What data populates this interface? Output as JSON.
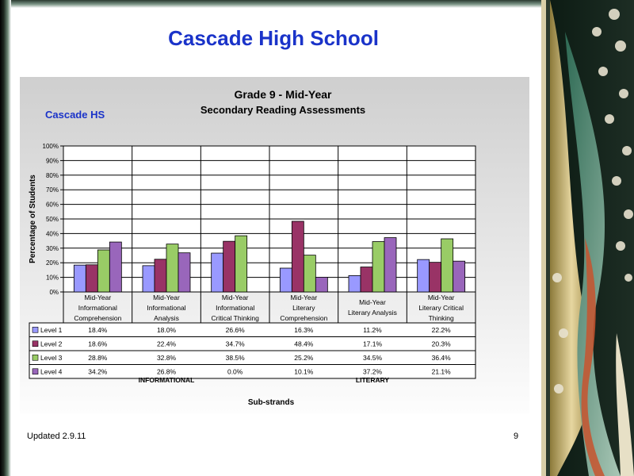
{
  "slide": {
    "title": "Cascade High School",
    "footer_left": "Updated  2.9.11",
    "page_number": "9"
  },
  "chart_data": {
    "type": "bar",
    "title": "Grade 9 - Mid-Year",
    "subtitle": "Secondary Reading Assessments",
    "school_label": "Cascade HS",
    "ylabel": "Percentage of Students",
    "xlabel": "Sub-strands",
    "ylim": [
      0,
      100
    ],
    "yticks": [
      "0%",
      "10%",
      "20%",
      "30%",
      "40%",
      "50%",
      "60%",
      "70%",
      "80%",
      "90%",
      "100%"
    ],
    "grid": true,
    "legend": "data-table",
    "categories": [
      [
        "Mid-Year",
        "Informational",
        "Comprehension"
      ],
      [
        "Mid-Year",
        "Informational",
        "Analysis"
      ],
      [
        "Mid-Year",
        "Informational",
        "Critical Thinking"
      ],
      [
        "Mid-Year",
        "Literary",
        "Comprehension"
      ],
      [
        "Mid-Year",
        "Literary Analysis"
      ],
      [
        "Mid-Year",
        "Literary Critical",
        "Thinking"
      ]
    ],
    "groups": [
      {
        "label": "INFORMATIONAL",
        "span": [
          0,
          2
        ]
      },
      {
        "label": "LITERARY",
        "span": [
          3,
          5
        ]
      }
    ],
    "series": [
      {
        "name": "Level 1",
        "color": "#9999ff",
        "values": [
          18.4,
          18.0,
          26.6,
          16.3,
          11.2,
          22.2
        ],
        "labels": [
          "18.4%",
          "18.0%",
          "26.6%",
          "16.3%",
          "11.2%",
          "22.2%"
        ]
      },
      {
        "name": "Level 2",
        "color": "#993366",
        "values": [
          18.6,
          22.4,
          34.7,
          48.4,
          17.1,
          20.3
        ],
        "labels": [
          "18.6%",
          "22.4%",
          "34.7%",
          "48.4%",
          "17.1%",
          "20.3%"
        ]
      },
      {
        "name": "Level 3",
        "color": "#99cc66",
        "values": [
          28.8,
          32.8,
          38.5,
          25.2,
          34.5,
          36.4
        ],
        "labels": [
          "28.8%",
          "32.8%",
          "38.5%",
          "25.2%",
          "34.5%",
          "36.4%"
        ]
      },
      {
        "name": "Level 4",
        "color": "#9966bb",
        "values": [
          34.2,
          26.8,
          0.0,
          10.1,
          37.2,
          21.1
        ],
        "labels": [
          "34.2%",
          "26.8%",
          "0.0%",
          "10.1%",
          "37.2%",
          "21.1%"
        ]
      }
    ]
  }
}
